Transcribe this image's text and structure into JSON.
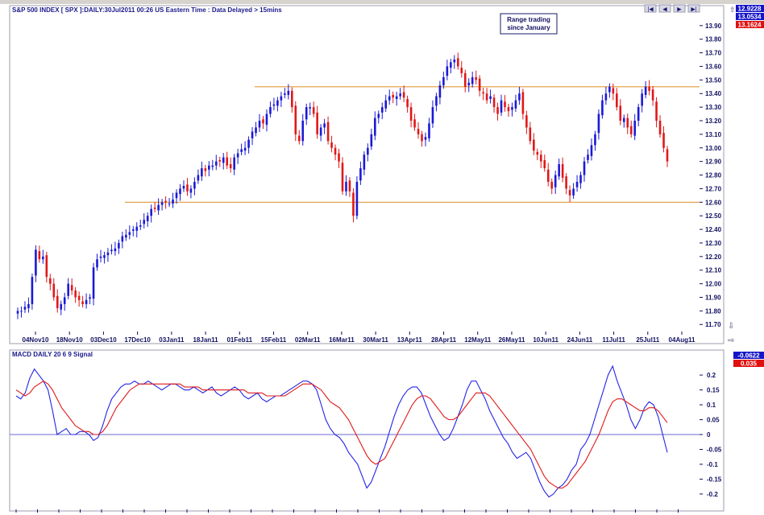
{
  "chart_data": [
    {
      "type": "candlestick",
      "title": "S&P 500 INDEX [ SPX ]:DAILY:30Jul2011 00:26 US Eastern Time  : Data Delayed > 15mins",
      "annotation": [
        "Range trading",
        "since January"
      ],
      "y_ticks": [
        "13.90",
        "13.80",
        "13.70",
        "13.60",
        "13.50",
        "13.40",
        "13.30",
        "13.20",
        "13.10",
        "13.00",
        "12.90",
        "12.80",
        "12.70",
        "12.60",
        "12.50",
        "12.40",
        "12.30",
        "12.20",
        "12.10",
        "12.00",
        "11.90",
        "11.80",
        "11.70"
      ],
      "ylim": [
        11.66,
        13.97
      ],
      "x_ticks": [
        "04Nov10",
        "18Nov10",
        "03Dec10",
        "17Dec10",
        "03Jan11",
        "18Jan11",
        "01Feb11",
        "15Feb11",
        "02Mar11",
        "16Mar11",
        "30Mar11",
        "13Apr11",
        "28Apr11",
        "12May11",
        "26May11",
        "10Jun11",
        "24Jun11",
        "11Jul11",
        "25Jul11",
        "04Aug11"
      ],
      "price_labels": [
        {
          "text": "12.9228",
          "color": "#1414c8"
        },
        {
          "text": "13.0534",
          "color": "#1414c8"
        },
        {
          "text": "13.1624",
          "color": "#e01010"
        }
      ],
      "horizontal_lines": [
        13.45,
        12.6
      ],
      "up_color": "#1a1ad6",
      "down_color": "#e01818",
      "line_color": "#e09a3a",
      "closes": [
        11.8,
        11.8,
        11.83,
        11.85,
        12.05,
        12.25,
        12.18,
        12.2,
        12.05,
        12.0,
        11.9,
        11.82,
        11.85,
        11.9,
        12.0,
        11.95,
        11.9,
        11.88,
        11.85,
        11.88,
        11.9,
        12.12,
        12.18,
        12.2,
        12.21,
        12.23,
        12.25,
        12.26,
        12.3,
        12.35,
        12.36,
        12.38,
        12.4,
        12.42,
        12.43,
        12.47,
        12.5,
        12.55,
        12.55,
        12.58,
        12.6,
        12.6,
        12.59,
        12.62,
        12.67,
        12.7,
        12.72,
        12.68,
        12.7,
        12.75,
        12.8,
        12.85,
        12.83,
        12.87,
        12.87,
        12.9,
        12.9,
        12.93,
        12.87,
        12.85,
        12.93,
        12.96,
        12.99,
        13.0,
        13.06,
        13.12,
        13.15,
        13.2,
        13.18,
        13.25,
        13.3,
        13.32,
        13.35,
        13.38,
        13.4,
        13.42,
        13.3,
        13.1,
        13.05,
        13.2,
        13.3,
        13.3,
        13.25,
        13.1,
        13.15,
        13.18,
        13.05,
        13.0,
        12.95,
        12.9,
        12.68,
        12.75,
        12.68,
        12.5,
        12.75,
        12.85,
        12.95,
        13.0,
        13.1,
        13.22,
        13.25,
        13.3,
        13.35,
        13.38,
        13.37,
        13.38,
        13.4,
        13.37,
        13.3,
        13.2,
        13.15,
        13.1,
        13.05,
        13.08,
        13.18,
        13.3,
        13.38,
        13.46,
        13.52,
        13.6,
        13.63,
        13.65,
        13.6,
        13.55,
        13.45,
        13.48,
        13.52,
        13.5,
        13.42,
        13.4,
        13.35,
        13.38,
        13.3,
        13.25,
        13.35,
        13.3,
        13.27,
        13.3,
        13.35,
        13.4,
        13.25,
        13.15,
        13.05,
        12.98,
        12.95,
        12.9,
        12.85,
        12.75,
        12.7,
        12.8,
        12.88,
        12.78,
        12.7,
        12.65,
        12.7,
        12.75,
        12.8,
        12.9,
        12.95,
        13.02,
        13.1,
        13.25,
        13.35,
        13.4,
        13.45,
        13.4,
        13.3,
        13.2,
        13.22,
        13.15,
        13.1,
        13.2,
        13.3,
        13.4,
        13.45,
        13.42,
        13.35,
        13.2,
        13.1,
        13.0,
        12.9
      ],
      "subchart": {
        "title": "MACD DAILY 20 6 9 Signal",
        "y_ticks": [
          "0.2",
          "0.15",
          "0.1",
          "0.05",
          "0",
          "-0.05",
          "-0.1",
          "-0.15",
          "-0.2"
        ],
        "ylim": [
          -0.23,
          0.23
        ],
        "labels": [
          {
            "text": "-0.0622",
            "color": "#1414c8"
          },
          {
            "text": "0.035",
            "color": "#e01010"
          }
        ],
        "series": [
          {
            "color": "#2424e6",
            "values": [
              0.13,
              0.12,
              0.14,
              0.19,
              0.22,
              0.2,
              0.18,
              0.15,
              0.08,
              0.0,
              0.01,
              0.02,
              0.0,
              0.0,
              0.01,
              0.01,
              0.0,
              -0.02,
              -0.01,
              0.03,
              0.08,
              0.12,
              0.14,
              0.16,
              0.17,
              0.17,
              0.18,
              0.17,
              0.17,
              0.18,
              0.17,
              0.16,
              0.15,
              0.16,
              0.17,
              0.17,
              0.16,
              0.15,
              0.15,
              0.16,
              0.15,
              0.14,
              0.15,
              0.16,
              0.14,
              0.13,
              0.14,
              0.15,
              0.16,
              0.15,
              0.13,
              0.12,
              0.13,
              0.14,
              0.12,
              0.11,
              0.12,
              0.13,
              0.13,
              0.14,
              0.15,
              0.16,
              0.17,
              0.18,
              0.18,
              0.17,
              0.15,
              0.1,
              0.05,
              0.02,
              0.0,
              -0.01,
              -0.03,
              -0.06,
              -0.08,
              -0.1,
              -0.14,
              -0.18,
              -0.16,
              -0.12,
              -0.08,
              -0.04,
              0.01,
              0.06,
              0.1,
              0.13,
              0.15,
              0.16,
              0.16,
              0.14,
              0.1,
              0.06,
              0.03,
              0.0,
              -0.02,
              -0.01,
              0.02,
              0.06,
              0.1,
              0.15,
              0.18,
              0.18,
              0.15,
              0.12,
              0.08,
              0.05,
              0.02,
              -0.01,
              -0.03,
              -0.06,
              -0.08,
              -0.07,
              -0.06,
              -0.08,
              -0.12,
              -0.16,
              -0.19,
              -0.21,
              -0.2,
              -0.18,
              -0.17,
              -0.15,
              -0.12,
              -0.1,
              -0.05,
              -0.03,
              0.0,
              0.05,
              0.1,
              0.15,
              0.2,
              0.23,
              0.18,
              0.14,
              0.1,
              0.05,
              0.02,
              0.05,
              0.09,
              0.11,
              0.1,
              0.06,
              0.0,
              -0.06
            ]
          },
          {
            "color": "#e01818",
            "values": [
              0.15,
              0.14,
              0.13,
              0.14,
              0.16,
              0.17,
              0.18,
              0.17,
              0.15,
              0.12,
              0.09,
              0.07,
              0.05,
              0.03,
              0.02,
              0.01,
              0.01,
              0.0,
              0.0,
              0.01,
              0.03,
              0.06,
              0.09,
              0.11,
              0.13,
              0.15,
              0.16,
              0.17,
              0.17,
              0.17,
              0.17,
              0.17,
              0.17,
              0.17,
              0.17,
              0.17,
              0.17,
              0.16,
              0.16,
              0.16,
              0.16,
              0.15,
              0.15,
              0.15,
              0.15,
              0.15,
              0.15,
              0.15,
              0.15,
              0.15,
              0.15,
              0.14,
              0.14,
              0.14,
              0.14,
              0.13,
              0.13,
              0.13,
              0.13,
              0.13,
              0.14,
              0.15,
              0.16,
              0.17,
              0.17,
              0.17,
              0.16,
              0.15,
              0.13,
              0.11,
              0.1,
              0.09,
              0.07,
              0.05,
              0.02,
              -0.01,
              -0.04,
              -0.07,
              -0.09,
              -0.1,
              -0.09,
              -0.08,
              -0.05,
              -0.02,
              0.01,
              0.04,
              0.07,
              0.1,
              0.12,
              0.13,
              0.13,
              0.12,
              0.1,
              0.08,
              0.06,
              0.05,
              0.05,
              0.06,
              0.08,
              0.1,
              0.12,
              0.14,
              0.14,
              0.14,
              0.13,
              0.11,
              0.09,
              0.07,
              0.05,
              0.03,
              0.01,
              -0.01,
              -0.03,
              -0.05,
              -0.08,
              -0.11,
              -0.14,
              -0.16,
              -0.17,
              -0.18,
              -0.18,
              -0.17,
              -0.15,
              -0.13,
              -0.11,
              -0.09,
              -0.06,
              -0.03,
              0.0,
              0.04,
              0.08,
              0.11,
              0.12,
              0.12,
              0.11,
              0.1,
              0.09,
              0.08,
              0.08,
              0.09,
              0.09,
              0.08,
              0.06,
              0.04
            ]
          }
        ]
      }
    }
  ]
}
